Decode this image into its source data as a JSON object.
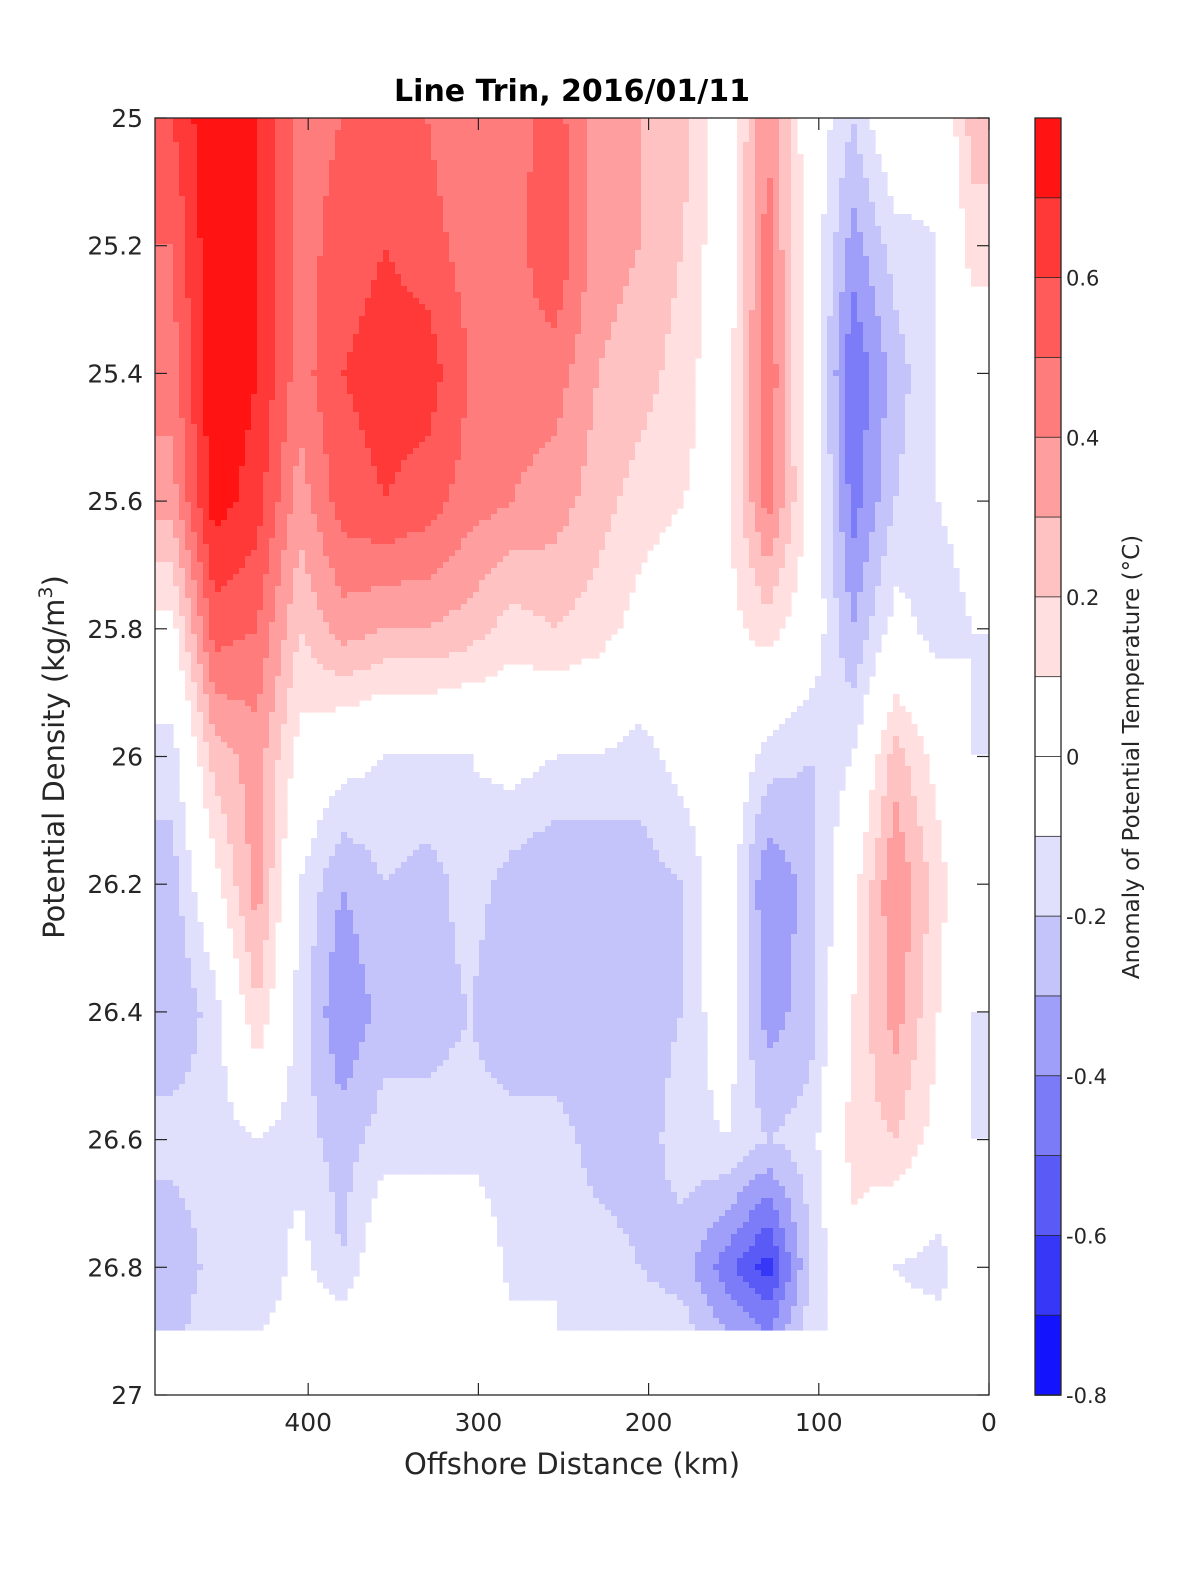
{
  "chart_data": {
    "type": "heatmap",
    "title": "Line Trin, 2016/01/11",
    "xlabel": "Offshore Distance (km)",
    "ylabel": "Potential Density (kg/m³)",
    "ylabel_main": "Potential Density (kg/m",
    "ylabel_sup": "3",
    "ylabel_end": ")",
    "colorbar_label": "Anomaly of Potential Temperature (°C)",
    "xlim": [
      490,
      0
    ],
    "ylim": [
      25,
      27
    ],
    "x_reversed": true,
    "y_reversed": true,
    "x_ticks": [
      "400",
      "300",
      "200",
      "100",
      "0"
    ],
    "x_tick_values": [
      400,
      300,
      200,
      100,
      0
    ],
    "y_ticks": [
      "25",
      "25.2",
      "25.4",
      "25.6",
      "25.8",
      "26",
      "26.2",
      "26.4",
      "26.6",
      "26.8",
      "27"
    ],
    "y_tick_values": [
      25,
      25.2,
      25.4,
      25.6,
      25.8,
      26,
      26.2,
      26.4,
      26.6,
      26.8,
      27
    ],
    "colorbar_ticks": [
      "0.6",
      "0.4",
      "0.2",
      "0",
      "-0.2",
      "-0.4",
      "-0.6",
      "-0.8"
    ],
    "colorbar_tick_values": [
      0.6,
      0.4,
      0.2,
      0,
      -0.2,
      -0.4,
      -0.6,
      -0.8
    ],
    "clim": [
      -0.8,
      0.8
    ],
    "contour_interval": 0.1,
    "zero_contour": "black",
    "data_extent_density": [
      25,
      26.9
    ],
    "colormap": {
      "0.8": "#ff0000",
      "0.6": "#ff4b4b",
      "0.4": "#ff8c8c",
      "0.2": "#ffd4d4",
      "0": "#ffffff",
      "-0.2": "#d6d6fb",
      "-0.4": "#8c8cf8",
      "-0.6": "#4a4af6",
      "-0.8": "#0000ff"
    },
    "anomaly_grid": {
      "x_km": [
        480,
        455,
        430,
        405,
        380,
        355,
        330,
        305,
        280,
        255,
        230,
        205,
        180,
        155,
        130,
        105,
        80,
        55,
        30,
        10
      ],
      "density": [
        25.0,
        25.2,
        25.4,
        25.6,
        25.8,
        26.0,
        26.2,
        26.4,
        26.6,
        26.8,
        26.9
      ],
      "values": [
        [
          0.6,
          0.8,
          0.7,
          0.45,
          0.5,
          0.55,
          0.5,
          0.4,
          0.45,
          0.55,
          0.35,
          0.3,
          0.25,
          0.0,
          0.4,
          0.0,
          -0.2,
          0.05,
          -0.05,
          0.25
        ],
        [
          0.5,
          0.8,
          0.7,
          0.45,
          0.55,
          0.6,
          0.55,
          0.45,
          0.45,
          0.6,
          0.35,
          0.3,
          0.2,
          0.0,
          0.45,
          0.0,
          -0.35,
          -0.15,
          -0.1,
          0.15
        ],
        [
          0.45,
          0.8,
          0.7,
          0.45,
          0.6,
          0.65,
          0.65,
          0.5,
          0.45,
          0.45,
          0.3,
          0.25,
          0.15,
          0.0,
          0.5,
          0.0,
          -0.5,
          -0.25,
          -0.1,
          0.0
        ],
        [
          0.35,
          0.75,
          0.65,
          0.35,
          0.55,
          0.6,
          0.55,
          0.45,
          0.4,
          0.35,
          0.25,
          0.15,
          0.1,
          0.05,
          0.45,
          0.05,
          -0.45,
          -0.2,
          -0.1,
          -0.05
        ],
        [
          0.05,
          0.55,
          0.5,
          0.2,
          0.35,
          0.3,
          0.3,
          0.25,
          0.15,
          0.2,
          0.15,
          0.05,
          0.0,
          0.05,
          0.15,
          0.0,
          -0.3,
          -0.05,
          -0.15,
          -0.1
        ],
        [
          -0.15,
          0.25,
          0.35,
          0.05,
          -0.05,
          -0.1,
          -0.1,
          -0.1,
          -0.05,
          -0.1,
          -0.1,
          -0.15,
          -0.05,
          0.05,
          -0.15,
          -0.2,
          -0.1,
          0.25,
          0.05,
          -0.1
        ],
        [
          -0.25,
          0.05,
          0.35,
          -0.1,
          -0.3,
          -0.2,
          -0.25,
          -0.15,
          -0.25,
          -0.3,
          -0.3,
          -0.25,
          -0.2,
          0.0,
          -0.4,
          -0.25,
          0.05,
          0.4,
          0.15,
          -0.05
        ],
        [
          -0.3,
          -0.15,
          0.2,
          -0.15,
          -0.4,
          -0.25,
          -0.25,
          -0.2,
          -0.3,
          -0.3,
          -0.25,
          -0.25,
          -0.2,
          0.0,
          -0.35,
          -0.25,
          0.1,
          0.35,
          0.1,
          -0.1
        ],
        [
          -0.15,
          -0.15,
          -0.1,
          -0.15,
          -0.25,
          -0.15,
          -0.15,
          -0.15,
          -0.15,
          -0.15,
          -0.25,
          -0.25,
          -0.15,
          -0.1,
          -0.2,
          -0.15,
          0.15,
          0.2,
          0.05,
          -0.1
        ],
        [
          -0.3,
          -0.15,
          -0.2,
          -0.05,
          -0.2,
          0.05,
          0.05,
          0.05,
          -0.15,
          -0.1,
          -0.15,
          -0.2,
          -0.25,
          -0.45,
          -0.65,
          -0.2,
          0.05,
          -0.1,
          -0.15,
          0.0
        ],
        [
          -0.25,
          -0.1,
          -0.1,
          -0.05,
          0.0,
          0.05,
          0.05,
          0.05,
          -0.05,
          -0.1,
          -0.15,
          -0.15,
          -0.15,
          -0.3,
          -0.4,
          -0.15,
          0.0,
          -0.05,
          -0.05,
          0.0
        ]
      ]
    }
  }
}
